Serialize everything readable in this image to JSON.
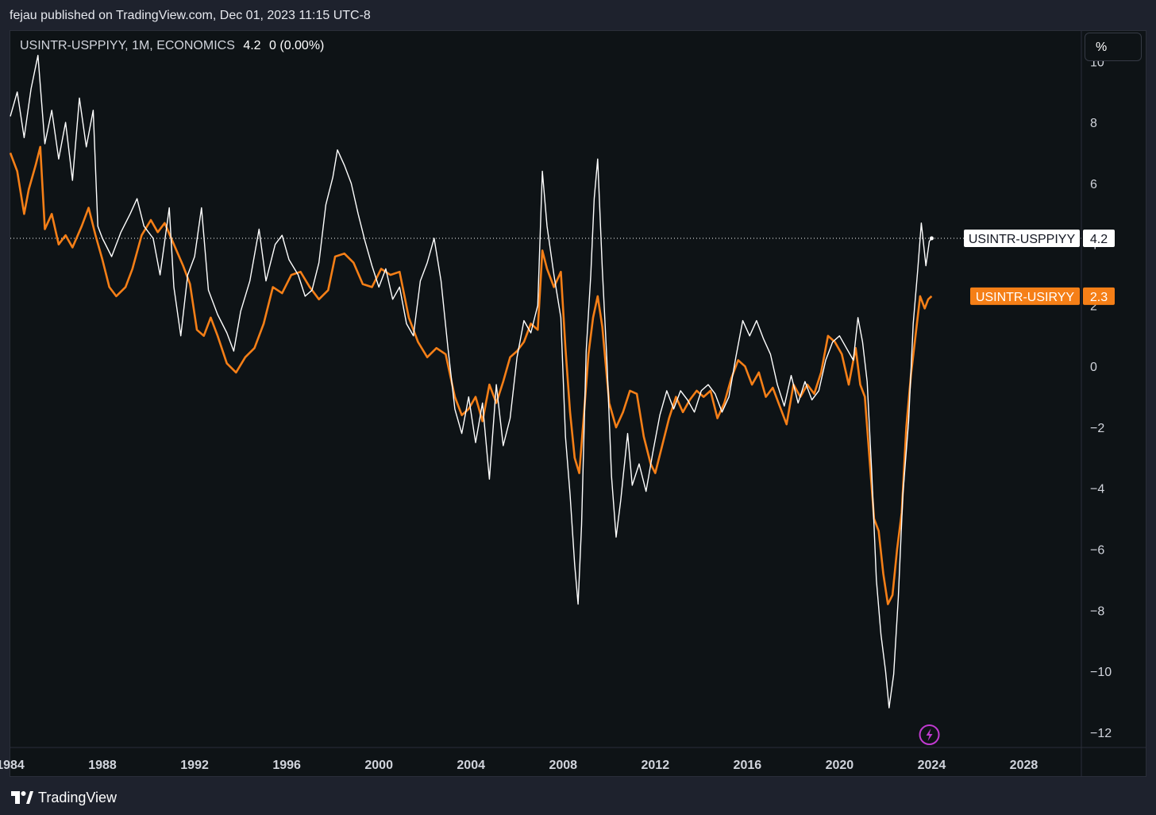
{
  "header": {
    "publisher_text": "fejau published on TradingView.com, Dec 01, 2023 11:15 UTC-8"
  },
  "legend": {
    "symbol": "USINTR-USPPIYY, 1M, ECONOMICS",
    "last_value": "4.2",
    "change": "0 (0.00%)"
  },
  "scale": {
    "unit_button": "%"
  },
  "footer": {
    "brand": "TradingView"
  },
  "chart_data": {
    "type": "line",
    "xlim": [
      1984,
      2030.5
    ],
    "ylim": [
      -12.5,
      11
    ],
    "y_ticks": [
      10,
      8,
      6,
      4,
      2,
      0,
      -2,
      -4,
      -6,
      -8,
      -10,
      -12
    ],
    "x_ticks": [
      1984,
      1988,
      1992,
      1996,
      2000,
      2004,
      2008,
      2012,
      2016,
      2020,
      2024,
      2028
    ],
    "grid": false,
    "series": [
      {
        "name": "USINTR-USPPIYY",
        "color": "#ffffff",
        "last_label": "4.2",
        "points": [
          [
            1984.0,
            8.2
          ],
          [
            1984.3,
            9.0
          ],
          [
            1984.6,
            7.5
          ],
          [
            1984.9,
            9.1
          ],
          [
            1985.2,
            10.2
          ],
          [
            1985.5,
            7.3
          ],
          [
            1985.8,
            8.4
          ],
          [
            1986.1,
            6.8
          ],
          [
            1986.4,
            8.0
          ],
          [
            1986.7,
            6.1
          ],
          [
            1987.0,
            8.8
          ],
          [
            1987.3,
            7.2
          ],
          [
            1987.6,
            8.4
          ],
          [
            1987.8,
            4.6
          ],
          [
            1988.0,
            4.2
          ],
          [
            1988.4,
            3.6
          ],
          [
            1988.8,
            4.4
          ],
          [
            1989.2,
            5.0
          ],
          [
            1989.5,
            5.5
          ],
          [
            1989.8,
            4.6
          ],
          [
            1990.2,
            4.2
          ],
          [
            1990.5,
            3.0
          ],
          [
            1990.9,
            5.2
          ],
          [
            1991.1,
            2.6
          ],
          [
            1991.4,
            1.0
          ],
          [
            1991.7,
            3.0
          ],
          [
            1992.0,
            3.6
          ],
          [
            1992.3,
            5.2
          ],
          [
            1992.6,
            2.5
          ],
          [
            1993.0,
            1.7
          ],
          [
            1993.4,
            1.1
          ],
          [
            1993.7,
            0.5
          ],
          [
            1994.0,
            1.8
          ],
          [
            1994.4,
            2.8
          ],
          [
            1994.8,
            4.5
          ],
          [
            1995.1,
            2.8
          ],
          [
            1995.5,
            4.0
          ],
          [
            1995.8,
            4.3
          ],
          [
            1996.1,
            3.5
          ],
          [
            1996.5,
            3.0
          ],
          [
            1996.8,
            2.3
          ],
          [
            1997.1,
            2.5
          ],
          [
            1997.4,
            3.4
          ],
          [
            1997.7,
            5.3
          ],
          [
            1998.0,
            6.2
          ],
          [
            1998.2,
            7.1
          ],
          [
            1998.5,
            6.6
          ],
          [
            1998.8,
            6.0
          ],
          [
            1999.1,
            5.0
          ],
          [
            1999.4,
            4.1
          ],
          [
            1999.7,
            3.3
          ],
          [
            2000.0,
            2.6
          ],
          [
            2000.3,
            3.2
          ],
          [
            2000.6,
            2.2
          ],
          [
            2000.9,
            2.6
          ],
          [
            2001.2,
            1.4
          ],
          [
            2001.5,
            1.0
          ],
          [
            2001.8,
            2.8
          ],
          [
            2002.1,
            3.4
          ],
          [
            2002.4,
            4.2
          ],
          [
            2002.7,
            2.8
          ],
          [
            2003.0,
            0.6
          ],
          [
            2003.3,
            -1.4
          ],
          [
            2003.6,
            -2.2
          ],
          [
            2003.9,
            -1.0
          ],
          [
            2004.2,
            -2.5
          ],
          [
            2004.5,
            -1.2
          ],
          [
            2004.8,
            -3.7
          ],
          [
            2005.1,
            -0.6
          ],
          [
            2005.4,
            -2.6
          ],
          [
            2005.7,
            -1.7
          ],
          [
            2006.0,
            0.3
          ],
          [
            2006.3,
            1.5
          ],
          [
            2006.6,
            1.1
          ],
          [
            2006.9,
            2.0
          ],
          [
            2007.1,
            6.4
          ],
          [
            2007.3,
            4.6
          ],
          [
            2007.6,
            3.0
          ],
          [
            2007.9,
            1.6
          ],
          [
            2008.1,
            -2.3
          ],
          [
            2008.3,
            -4.2
          ],
          [
            2008.5,
            -6.5
          ],
          [
            2008.65,
            -7.8
          ],
          [
            2008.8,
            -5.2
          ],
          [
            2009.0,
            0.5
          ],
          [
            2009.2,
            3.0
          ],
          [
            2009.35,
            5.5
          ],
          [
            2009.5,
            6.8
          ],
          [
            2009.7,
            3.2
          ],
          [
            2009.9,
            0.2
          ],
          [
            2010.1,
            -3.6
          ],
          [
            2010.3,
            -5.6
          ],
          [
            2010.5,
            -4.4
          ],
          [
            2010.8,
            -2.2
          ],
          [
            2011.0,
            -3.9
          ],
          [
            2011.3,
            -3.2
          ],
          [
            2011.6,
            -4.1
          ],
          [
            2011.9,
            -2.8
          ],
          [
            2012.2,
            -1.6
          ],
          [
            2012.5,
            -0.8
          ],
          [
            2012.8,
            -1.4
          ],
          [
            2013.1,
            -0.8
          ],
          [
            2013.4,
            -1.1
          ],
          [
            2013.7,
            -1.5
          ],
          [
            2014.0,
            -0.8
          ],
          [
            2014.3,
            -0.6
          ],
          [
            2014.6,
            -0.9
          ],
          [
            2014.9,
            -1.5
          ],
          [
            2015.2,
            -1.0
          ],
          [
            2015.5,
            0.3
          ],
          [
            2015.8,
            1.5
          ],
          [
            2016.1,
            1.0
          ],
          [
            2016.4,
            1.5
          ],
          [
            2016.7,
            0.9
          ],
          [
            2017.0,
            0.4
          ],
          [
            2017.3,
            -0.6
          ],
          [
            2017.6,
            -1.3
          ],
          [
            2017.9,
            -0.3
          ],
          [
            2018.2,
            -1.2
          ],
          [
            2018.5,
            -0.5
          ],
          [
            2018.8,
            -1.1
          ],
          [
            2019.1,
            -0.8
          ],
          [
            2019.4,
            0.2
          ],
          [
            2019.7,
            0.8
          ],
          [
            2020.0,
            1.0
          ],
          [
            2020.3,
            0.6
          ],
          [
            2020.6,
            0.2
          ],
          [
            2020.8,
            1.6
          ],
          [
            2021.0,
            0.8
          ],
          [
            2021.2,
            -0.5
          ],
          [
            2021.4,
            -3.5
          ],
          [
            2021.6,
            -7.0
          ],
          [
            2021.8,
            -8.8
          ],
          [
            2022.0,
            -10.0
          ],
          [
            2022.15,
            -11.2
          ],
          [
            2022.35,
            -10.1
          ],
          [
            2022.55,
            -7.6
          ],
          [
            2022.75,
            -4.2
          ],
          [
            2023.0,
            -1.8
          ],
          [
            2023.2,
            1.4
          ],
          [
            2023.4,
            3.2
          ],
          [
            2023.55,
            4.7
          ],
          [
            2023.75,
            3.3
          ],
          [
            2023.9,
            4.1
          ],
          [
            2024.0,
            4.2
          ]
        ]
      },
      {
        "name": "USINTR-USIRYY",
        "color": "#f57f17",
        "last_label": "2.3",
        "points": [
          [
            1984.0,
            7.0
          ],
          [
            1984.3,
            6.4
          ],
          [
            1984.6,
            5.0
          ],
          [
            1984.8,
            5.8
          ],
          [
            1985.1,
            6.6
          ],
          [
            1985.3,
            7.2
          ],
          [
            1985.5,
            4.5
          ],
          [
            1985.8,
            5.0
          ],
          [
            1986.1,
            4.0
          ],
          [
            1986.4,
            4.3
          ],
          [
            1986.7,
            3.9
          ],
          [
            1987.1,
            4.6
          ],
          [
            1987.4,
            5.2
          ],
          [
            1987.7,
            4.3
          ],
          [
            1988.0,
            3.5
          ],
          [
            1988.3,
            2.6
          ],
          [
            1988.6,
            2.3
          ],
          [
            1989.0,
            2.6
          ],
          [
            1989.3,
            3.2
          ],
          [
            1989.7,
            4.3
          ],
          [
            1990.1,
            4.8
          ],
          [
            1990.4,
            4.4
          ],
          [
            1990.7,
            4.7
          ],
          [
            1991.1,
            4.0
          ],
          [
            1991.5,
            3.3
          ],
          [
            1991.8,
            2.7
          ],
          [
            1992.1,
            1.2
          ],
          [
            1992.4,
            1.0
          ],
          [
            1992.7,
            1.6
          ],
          [
            1993.0,
            1.0
          ],
          [
            1993.4,
            0.1
          ],
          [
            1993.8,
            -0.2
          ],
          [
            1994.2,
            0.3
          ],
          [
            1994.6,
            0.6
          ],
          [
            1995.0,
            1.4
          ],
          [
            1995.4,
            2.6
          ],
          [
            1995.8,
            2.4
          ],
          [
            1996.2,
            3.0
          ],
          [
            1996.6,
            3.1
          ],
          [
            1997.0,
            2.6
          ],
          [
            1997.4,
            2.2
          ],
          [
            1997.8,
            2.5
          ],
          [
            1998.1,
            3.6
          ],
          [
            1998.5,
            3.7
          ],
          [
            1998.9,
            3.4
          ],
          [
            1999.3,
            2.7
          ],
          [
            1999.7,
            2.6
          ],
          [
            2000.1,
            3.2
          ],
          [
            2000.5,
            3.0
          ],
          [
            2000.9,
            3.1
          ],
          [
            2001.3,
            1.6
          ],
          [
            2001.7,
            0.8
          ],
          [
            2002.1,
            0.3
          ],
          [
            2002.5,
            0.6
          ],
          [
            2002.9,
            0.4
          ],
          [
            2003.3,
            -1.0
          ],
          [
            2003.6,
            -1.6
          ],
          [
            2003.9,
            -1.4
          ],
          [
            2004.2,
            -1.0
          ],
          [
            2004.5,
            -1.8
          ],
          [
            2004.8,
            -0.6
          ],
          [
            2005.1,
            -1.2
          ],
          [
            2005.4,
            -0.5
          ],
          [
            2005.7,
            0.3
          ],
          [
            2006.0,
            0.5
          ],
          [
            2006.3,
            0.8
          ],
          [
            2006.6,
            1.4
          ],
          [
            2006.9,
            1.2
          ],
          [
            2007.1,
            3.8
          ],
          [
            2007.3,
            3.2
          ],
          [
            2007.6,
            2.6
          ],
          [
            2007.9,
            3.1
          ],
          [
            2008.1,
            0.6
          ],
          [
            2008.3,
            -1.5
          ],
          [
            2008.5,
            -3.0
          ],
          [
            2008.7,
            -3.5
          ],
          [
            2008.9,
            -1.6
          ],
          [
            2009.1,
            0.4
          ],
          [
            2009.3,
            1.6
          ],
          [
            2009.5,
            2.3
          ],
          [
            2009.7,
            1.3
          ],
          [
            2010.0,
            -1.2
          ],
          [
            2010.3,
            -2.0
          ],
          [
            2010.6,
            -1.5
          ],
          [
            2010.9,
            -0.8
          ],
          [
            2011.2,
            -0.9
          ],
          [
            2011.5,
            -2.3
          ],
          [
            2011.8,
            -3.2
          ],
          [
            2012.0,
            -3.5
          ],
          [
            2012.3,
            -2.6
          ],
          [
            2012.6,
            -1.7
          ],
          [
            2012.9,
            -1.0
          ],
          [
            2013.2,
            -1.5
          ],
          [
            2013.5,
            -1.1
          ],
          [
            2013.8,
            -0.8
          ],
          [
            2014.1,
            -1.0
          ],
          [
            2014.4,
            -0.8
          ],
          [
            2014.7,
            -1.7
          ],
          [
            2015.0,
            -1.2
          ],
          [
            2015.3,
            -0.4
          ],
          [
            2015.6,
            0.2
          ],
          [
            2015.9,
            0.0
          ],
          [
            2016.2,
            -0.6
          ],
          [
            2016.5,
            -0.2
          ],
          [
            2016.8,
            -1.0
          ],
          [
            2017.1,
            -0.7
          ],
          [
            2017.4,
            -1.3
          ],
          [
            2017.7,
            -1.9
          ],
          [
            2018.0,
            -0.6
          ],
          [
            2018.3,
            -1.0
          ],
          [
            2018.6,
            -0.6
          ],
          [
            2018.9,
            -0.9
          ],
          [
            2019.2,
            -0.2
          ],
          [
            2019.5,
            1.0
          ],
          [
            2019.8,
            0.8
          ],
          [
            2020.1,
            0.4
          ],
          [
            2020.4,
            -0.6
          ],
          [
            2020.7,
            0.6
          ],
          [
            2020.9,
            -0.6
          ],
          [
            2021.1,
            -1.0
          ],
          [
            2021.3,
            -3.0
          ],
          [
            2021.5,
            -5.0
          ],
          [
            2021.7,
            -5.4
          ],
          [
            2021.9,
            -6.8
          ],
          [
            2022.1,
            -7.8
          ],
          [
            2022.3,
            -7.5
          ],
          [
            2022.5,
            -6.0
          ],
          [
            2022.7,
            -4.8
          ],
          [
            2022.9,
            -2.0
          ],
          [
            2023.1,
            -0.3
          ],
          [
            2023.3,
            1.0
          ],
          [
            2023.5,
            2.3
          ],
          [
            2023.7,
            1.9
          ],
          [
            2023.85,
            2.2
          ],
          [
            2024.0,
            2.3
          ]
        ]
      }
    ]
  }
}
